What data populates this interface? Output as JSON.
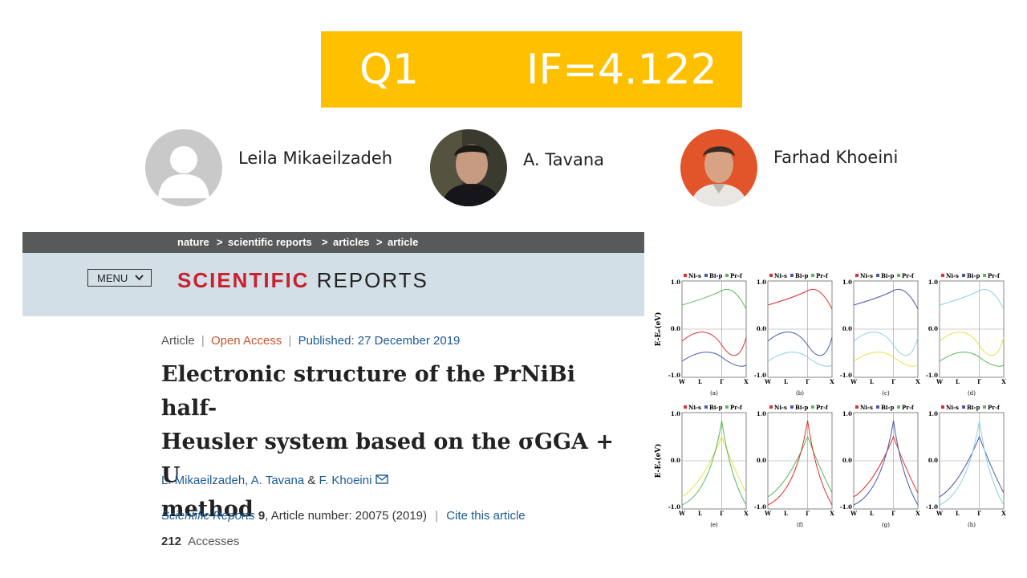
{
  "banner": {
    "quartile": "Q1",
    "impact": "IF=4.122",
    "color": "#ffc000"
  },
  "authors": [
    {
      "name": "Leila Mikaeilzadeh",
      "avatar": "default-user-avatar"
    },
    {
      "name": "A. Tavana",
      "avatar": "photo-avatar"
    },
    {
      "name": "Farhad Khoeini",
      "avatar": "photo-avatar"
    }
  ],
  "breadcrumb": [
    "nature",
    "scientific reports",
    "articles",
    "article"
  ],
  "header": {
    "menu_label": "MENU",
    "brand_first": "SCIENTIFIC",
    "brand_second": "REPORTS",
    "brand_red": "#c9202f"
  },
  "article": {
    "type": "Article",
    "access": "Open Access",
    "published": "Published: 27 December 2019",
    "title": "Electronic structure of the PrNiBi half-Heusler system based on the σGGA + U method",
    "title_lines": [
      "Electronic structure of the PrNiBi half-",
      "Heusler system based on the σGGA + U",
      "method"
    ],
    "authors_line": [
      "L. Mikaeilzadeh",
      "A. Tavana",
      "F. Khoeini"
    ],
    "journal": "Scientific Reports",
    "volume": "9",
    "article_number": ", Article number: 20075 (2019)",
    "cite": "Cite this article",
    "accesses_count": "212",
    "accesses_label": "Accesses"
  },
  "figure": {
    "legend": [
      "Ni-s",
      "Bi-p",
      "Pr-f"
    ],
    "legend_colors": [
      "#e0302f",
      "#4b5aa8",
      "#5cb85c"
    ],
    "y_ticks": [
      "1.0",
      "0.0",
      "-1.0"
    ],
    "x_ticks": [
      "W",
      "L",
      "Γ",
      "X"
    ],
    "y_label": "E-Eₑ(eV)",
    "panel_labels": [
      "(a)",
      "(b)",
      "(c)",
      "(d)",
      "(e)",
      "(f)",
      "(g)",
      "(h)"
    ]
  }
}
